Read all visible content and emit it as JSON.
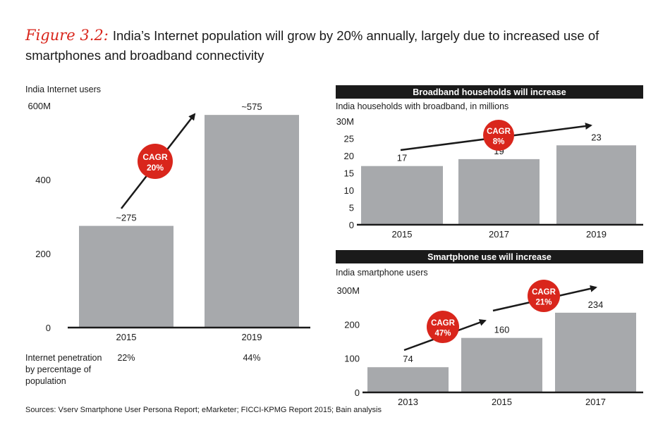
{
  "title": {
    "figure_label": "Figure 3.2:",
    "text": "India’s Internet population will grow by 20% annually, largely due to increased use of smartphones and broadband connectivity"
  },
  "colors": {
    "accent": "#d9261c",
    "bar": "#a7a9ac",
    "axis": "#1a1a1a",
    "header_bg": "#1a1a1a"
  },
  "chart_data": [
    {
      "id": "internet",
      "type": "bar",
      "title": "",
      "ylabel": "India Internet users",
      "categories": [
        "2015",
        "2019"
      ],
      "values": [
        275,
        575
      ],
      "value_labels": [
        "~275",
        "~575"
      ],
      "yticks": [
        "0",
        "200",
        "400",
        "600M"
      ],
      "ytick_values": [
        0,
        200,
        400,
        600
      ],
      "ylim": [
        0,
        600
      ],
      "cagr": {
        "label": "CAGR",
        "value": "20%"
      },
      "footer_label": "Internet penetration by percentage of population",
      "footer_values": [
        "22%",
        "44%"
      ]
    },
    {
      "id": "broadband",
      "type": "bar",
      "title": "Broadband households will increase",
      "ylabel": "India households with broadband, in millions",
      "categories": [
        "2015",
        "2017",
        "2019"
      ],
      "values": [
        17,
        19,
        23
      ],
      "value_labels": [
        "17",
        "19",
        "23"
      ],
      "yticks": [
        "0",
        "5",
        "10",
        "15",
        "20",
        "25",
        "30M"
      ],
      "ytick_values": [
        0,
        5,
        10,
        15,
        20,
        25,
        30
      ],
      "ylim": [
        0,
        30
      ],
      "cagr": {
        "label": "CAGR",
        "value": "8%"
      }
    },
    {
      "id": "smartphone",
      "type": "bar",
      "title": "Smartphone use will increase",
      "ylabel": "India smartphone users",
      "categories": [
        "2013",
        "2015",
        "2017"
      ],
      "values": [
        74,
        160,
        234
      ],
      "value_labels": [
        "74",
        "160",
        "234"
      ],
      "yticks": [
        "0",
        "100",
        "200",
        "300M"
      ],
      "ytick_values": [
        0,
        100,
        200,
        300
      ],
      "ylim": [
        0,
        300
      ],
      "cagrs": [
        {
          "label": "CAGR",
          "value": "47%"
        },
        {
          "label": "CAGR",
          "value": "21%"
        }
      ]
    }
  ],
  "sources": "Sources: Vserv Smartphone User Persona Report; eMarketer; FICCI-KPMG Report 2015; Bain analysis"
}
